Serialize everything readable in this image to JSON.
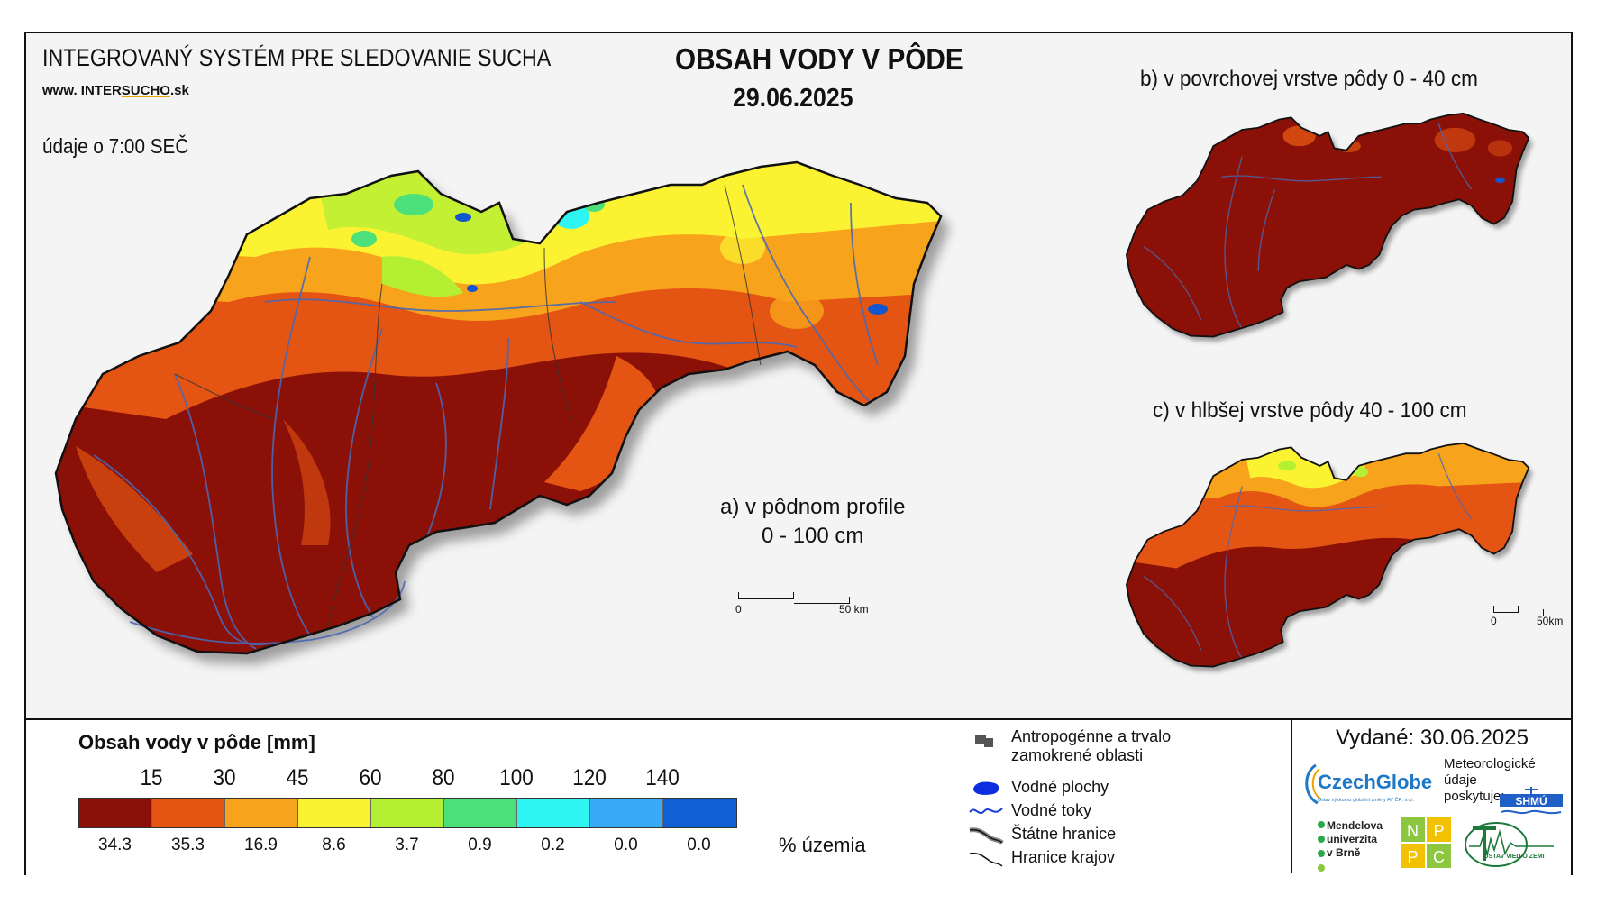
{
  "header": {
    "system_title": "INTEGROVANÝ SYSTÉM PRE SLEDOVANIE SUCHA",
    "site_prefix": "www. INTER",
    "site_accent": "SUCHO",
    "site_suffix": ".sk",
    "time_note": "údaje o 7:00 SEČ",
    "main_title": "OBSAH VODY V PÔDE",
    "date": "29.06.2025"
  },
  "maps": {
    "a_label_line1": "a) v pôdnom profile",
    "a_label_line2": "0 - 100 cm",
    "b_label": "b) v povrchovej vrstve pôdy 0 - 40 cm",
    "c_label": "c) v hlbšej vrstve pôdy 40 - 100 cm",
    "scale_main_start": "0",
    "scale_main_end": "50 km",
    "scale_small_start": "0",
    "scale_small_end": "50km"
  },
  "legend": {
    "title": "Obsah vody v pôde  [mm]",
    "ticks": [
      "15",
      "30",
      "45",
      "60",
      "80",
      "100",
      "120",
      "140"
    ],
    "colors": [
      "#8b1108",
      "#e45412",
      "#f7a41c",
      "#fbf332",
      "#b5ef32",
      "#4be07a",
      "#2ff5f2",
      "#39aaf5",
      "#1060d4"
    ],
    "percent": [
      "34.3",
      "35.3",
      "16.9",
      "8.6",
      "3.7",
      "0.9",
      "0.2",
      "0.0",
      "0.0"
    ],
    "percent_unit": "% územia"
  },
  "symbols": {
    "anthropogenic_line1": "Antropogénne a trvalo",
    "anthropogenic_line2": "zamokrené oblasti",
    "water_bodies": "Vodné plochy",
    "water_streams": "Vodné toky",
    "state_border": "Štátne hranice",
    "region_border": "Hranice krajov"
  },
  "credits": {
    "issued": "Vydané: 30.06.2025",
    "czechglobe": "CzechGlobe",
    "czechglobe_sub": "Ústav výzkumu globální změny AV ČR, v.v.i.",
    "meteo_line1": "Meteorologické",
    "meteo_line2": "údaje",
    "meteo_line3": "poskytuje:",
    "shmu": "SHMÚ",
    "mendel_line1": "Mendelova",
    "mendel_line2": "univerzita",
    "mendel_line3": "v Brně",
    "npc": [
      "N",
      "P",
      "P",
      "C"
    ],
    "uvz": "ÚSTAV VIED O ZEMI"
  }
}
